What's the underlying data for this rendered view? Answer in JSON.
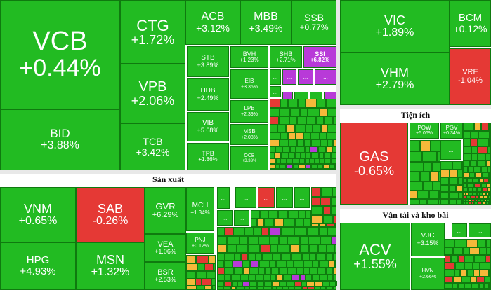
{
  "chart_data": {
    "type": "treemap",
    "colors": {
      "up": "#22bb22",
      "down": "#e53935",
      "ref": "#f5b93a",
      "ceiling": "#b83ad8"
    },
    "sections": [
      {
        "title": ""
      },
      {
        "title": "Sản xuất"
      },
      {
        "title": "Tiện ích"
      },
      {
        "title": "Vận tải và kho bãi"
      }
    ],
    "tiles": [
      {
        "ticker": "VCB",
        "change": "+0.44%",
        "status": "up"
      },
      {
        "ticker": "BID",
        "change": "+3.88%",
        "status": "up"
      },
      {
        "ticker": "CTG",
        "change": "+1.72%",
        "status": "up"
      },
      {
        "ticker": "VPB",
        "change": "+2.06%",
        "status": "up"
      },
      {
        "ticker": "TCB",
        "change": "+3.42%",
        "status": "up"
      },
      {
        "ticker": "ACB",
        "change": "+3.12%",
        "status": "up"
      },
      {
        "ticker": "MBB",
        "change": "+3.49%",
        "status": "up"
      },
      {
        "ticker": "SSB",
        "change": "+0.77%",
        "status": "up"
      },
      {
        "ticker": "STB",
        "change": "+3.89%",
        "status": "up"
      },
      {
        "ticker": "BVH",
        "change": "+1.23%",
        "status": "up"
      },
      {
        "ticker": "SHB",
        "change": "+2.71%",
        "status": "up"
      },
      {
        "ticker": "SSI",
        "change": "+6.82%",
        "status": "ceiling"
      },
      {
        "ticker": "HDB",
        "change": "+2.49%",
        "status": "up"
      },
      {
        "ticker": "EIB",
        "change": "+3.36%",
        "status": "up"
      },
      {
        "ticker": "VIB",
        "change": "+5.68%",
        "status": "up"
      },
      {
        "ticker": "LPB",
        "change": "+2.39%",
        "status": "up"
      },
      {
        "ticker": "MSB",
        "change": "+2.08%",
        "status": "up"
      },
      {
        "ticker": "TPB",
        "change": "+1.86%",
        "status": "up"
      },
      {
        "ticker": "OCB",
        "change": "+3.33%",
        "status": "up"
      },
      {
        "ticker": "VIC",
        "change": "+1.89%",
        "status": "up"
      },
      {
        "ticker": "BCM",
        "change": "+0.12%",
        "status": "up"
      },
      {
        "ticker": "VHM",
        "change": "+2.79%",
        "status": "up"
      },
      {
        "ticker": "VRE",
        "change": "-1.04%",
        "status": "down"
      },
      {
        "ticker": "GAS",
        "change": "-0.65%",
        "status": "down"
      },
      {
        "ticker": "POW",
        "change": "+5.06%",
        "status": "up"
      },
      {
        "ticker": "PGV",
        "change": "+0.34%",
        "status": "up"
      },
      {
        "ticker": "VNM",
        "change": "+0.65%",
        "status": "up"
      },
      {
        "ticker": "SAB",
        "change": "-0.26%",
        "status": "down"
      },
      {
        "ticker": "GVR",
        "change": "+6.29%",
        "status": "up"
      },
      {
        "ticker": "MCH",
        "change": "+1.34%",
        "status": "up"
      },
      {
        "ticker": "HPG",
        "change": "+4.93%",
        "status": "up"
      },
      {
        "ticker": "MSN",
        "change": "+1.32%",
        "status": "up"
      },
      {
        "ticker": "VEA",
        "change": "+1.06%",
        "status": "up"
      },
      {
        "ticker": "PNJ",
        "change": "+0.12%",
        "status": "up"
      },
      {
        "ticker": "BSR",
        "change": "+2.53%",
        "status": "up"
      },
      {
        "ticker": "ACV",
        "change": "+1.55%",
        "status": "up"
      },
      {
        "ticker": "VJC",
        "change": "+3.15%",
        "status": "up"
      },
      {
        "ticker": "HVN",
        "change": "+2.66%",
        "status": "up"
      }
    ],
    "ellipsis": "..."
  }
}
